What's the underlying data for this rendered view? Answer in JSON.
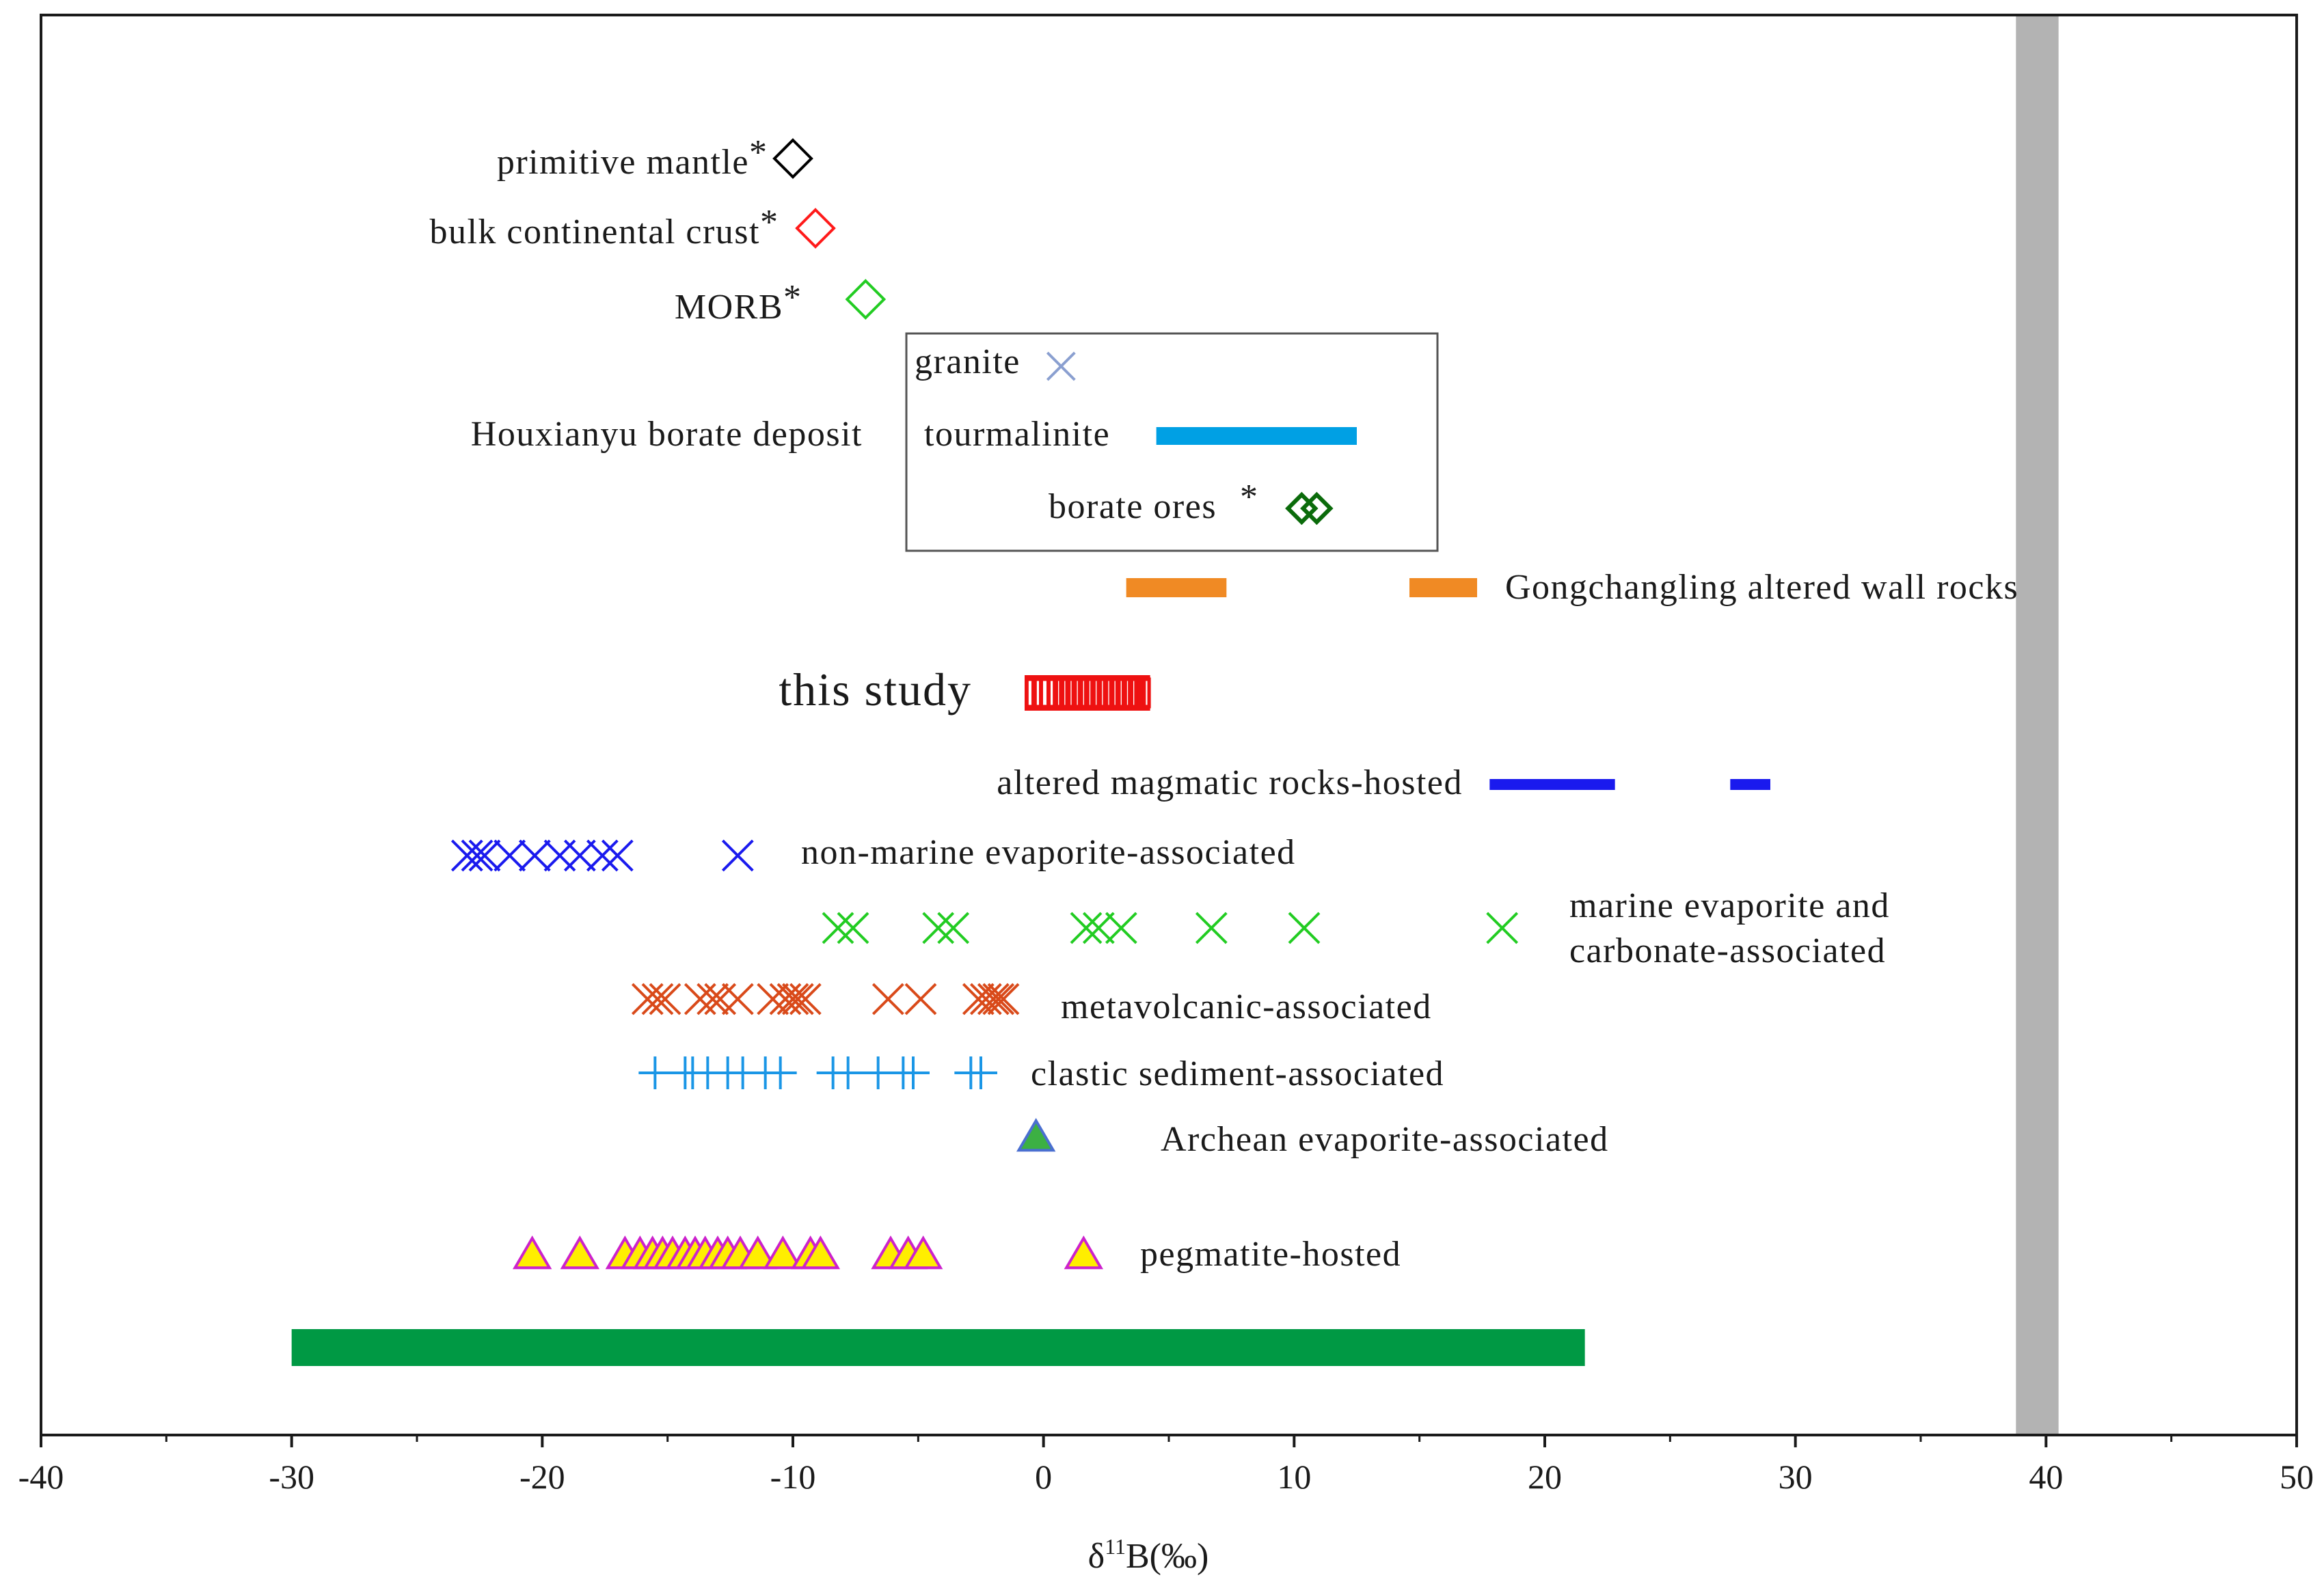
{
  "chart_data": {
    "type": "scatter",
    "title": "",
    "xlabel": "δ11B(‰)",
    "xlabel_main": "δ",
    "xlabel_sup": "11",
    "xlabel_rest": "B(‰)",
    "xlim": [
      -40,
      50
    ],
    "x_ticks": [
      "-40",
      "-30",
      "-20",
      "-10",
      "0",
      "10",
      "20",
      "30",
      "40",
      "50"
    ],
    "seawater_band": {
      "from": 38.8,
      "to": 40.5,
      "color": "#b3b3b3"
    },
    "single_points": [
      {
        "label": "primitive mantle",
        "asterisk": "*",
        "value": -10,
        "marker": "diamond",
        "color": "#000000"
      },
      {
        "label": "bulk continental crust",
        "asterisk": "*",
        "value": -9.1,
        "marker": "diamond",
        "color": "#ff1a1a"
      },
      {
        "label": "MORB",
        "asterisk": "*",
        "value": -7.1,
        "marker": "diamond",
        "color": "#22cc22"
      }
    ],
    "houxianyu": {
      "label": "Houxianyu borate deposit",
      "granite": {
        "label": "granite",
        "value": 0.7,
        "color": "#8a9fd0"
      },
      "tourmalinite": {
        "label": "tourmalinite",
        "range": [
          4.5,
          12.5
        ],
        "color": "#00a0e4"
      },
      "borate_ores": {
        "label": "borate ores",
        "asterisk": "*",
        "values": [
          10.3,
          10.9
        ],
        "color": "#0b6b0b"
      }
    },
    "gongchangling": {
      "label": "Gongchangling altered wall rocks",
      "ranges": [
        [
          3.3,
          7.3
        ],
        [
          14.6,
          17.3
        ]
      ],
      "color": "#f08a24"
    },
    "this_study": {
      "label": "this study",
      "range": [
        -0.7,
        4.2
      ],
      "values": [
        -0.5,
        -0.25,
        0.05,
        0.35,
        0.6,
        0.85,
        1.1,
        1.35,
        1.6,
        1.85,
        2.1,
        2.35,
        2.6,
        2.85,
        3.1,
        3.35,
        3.6,
        3.85,
        4.05
      ],
      "color": "#ee1111"
    },
    "altered_magmatic": {
      "label": "altered magmatic rocks-hosted",
      "ranges": [
        [
          17.8,
          22.8
        ],
        [
          27.4,
          29
        ]
      ],
      "color": "#1a1aee"
    },
    "non_marine": {
      "label": "non-marine evaporite-associated",
      "values": [
        -23,
        -22.6,
        -22.3,
        -21.3,
        -20.3,
        -19.3,
        -18.5,
        -17.6,
        -17.0,
        -12.2
      ],
      "color": "#1a1aee"
    },
    "marine_evaporite": {
      "label_line1": "marine evaporite and",
      "label_line2": "carbonate-associated",
      "values": [
        -8.2,
        -7.6,
        -4.2,
        -3.6,
        1.7,
        2.2,
        3.1,
        6.7,
        10.4,
        18.3
      ],
      "color": "#22cc22"
    },
    "metavolcanic": {
      "label": "metavolcanic-associated",
      "values": [
        -15.8,
        -15.4,
        -15.1,
        -13.7,
        -13.2,
        -12.9,
        -12.2,
        -10.8,
        -10.3,
        -10.0,
        -9.8,
        -9.5,
        -6.2,
        -4.9,
        -2.6,
        -2.3,
        -2.0,
        -1.8,
        -1.6
      ],
      "color": "#d94a1a"
    },
    "clastic": {
      "label": "clastic sediment-associated",
      "values": [
        -15.5,
        -14.3,
        -14.0,
        -13.4,
        -12.6,
        -12.0,
        -11.1,
        -10.5,
        -8.4,
        -7.8,
        -6.6,
        -5.6,
        -5.2,
        -2.9,
        -2.5
      ],
      "color": "#1a96e6"
    },
    "archean": {
      "label": "Archean evaporite-associated",
      "values": [
        -0.3
      ],
      "color": "#3cb043",
      "edge": "#4a6fd0"
    },
    "pegmatite": {
      "label": "pegmatite-hosted",
      "values": [
        -20.4,
        -18.5,
        -16.7,
        -16.1,
        -15.6,
        -15.2,
        -14.8,
        -14.3,
        -13.9,
        -13.5,
        -13.0,
        -12.6,
        -12.1,
        -11.4,
        -10.4,
        -9.3,
        -8.9,
        -6.1,
        -5.4,
        -4.8,
        1.6
      ],
      "color": "#ffee00",
      "edge": "#cc22cc"
    },
    "green_bar": {
      "range": [
        -30,
        21.6
      ],
      "color": "#009944"
    },
    "legend_box_label": "Houxianyu borate deposit"
  }
}
